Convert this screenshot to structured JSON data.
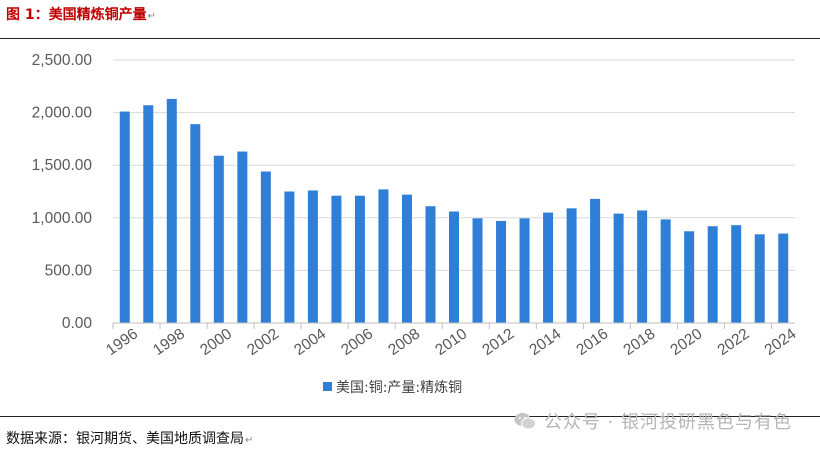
{
  "header": {
    "title": "图 1：美国精炼铜产量"
  },
  "footer": {
    "source": "数据来源：银河期货、美国地质调查局",
    "watermark": "公众号 · 银河投研黑色与有色"
  },
  "colors": {
    "bar": "#2f7fd8",
    "title": "#c00000",
    "grid": "#d9d9d9"
  },
  "chart_data": {
    "type": "bar",
    "categories": [
      "1996",
      "1997",
      "1998",
      "1999",
      "2000",
      "2001",
      "2002",
      "2003",
      "2004",
      "2005",
      "2006",
      "2007",
      "2008",
      "2009",
      "2010",
      "2011",
      "2012",
      "2013",
      "2014",
      "2015",
      "2016",
      "2017",
      "2018",
      "2019",
      "2020",
      "2021",
      "2022",
      "2023",
      "2024"
    ],
    "x_tick_labels": [
      "1996",
      "1998",
      "2000",
      "2002",
      "2004",
      "2006",
      "2008",
      "2010",
      "2012",
      "2014",
      "2016",
      "2018",
      "2020",
      "2022",
      "2024"
    ],
    "y_tick_labels": [
      "0.00",
      "500.00",
      "1,000.00",
      "1,500.00",
      "2,000.00",
      "2,500.00"
    ],
    "series": [
      {
        "name": "美国:铜:产量:精炼铜",
        "values": [
          2010,
          2070,
          2130,
          1890,
          1590,
          1630,
          1440,
          1250,
          1260,
          1210,
          1210,
          1270,
          1220,
          1110,
          1060,
          995,
          970,
          995,
          1050,
          1090,
          1180,
          1040,
          1070,
          985,
          872,
          920,
          930,
          843,
          850
        ]
      }
    ],
    "ylim": [
      0,
      2500
    ],
    "grid": true,
    "legend_position": "bottom"
  }
}
